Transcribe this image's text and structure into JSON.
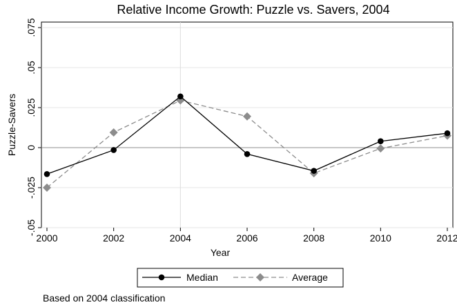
{
  "chart_data": {
    "type": "line",
    "title": "Relative Income Growth: Puzzle vs. Savers, 2004",
    "xlabel": "Year",
    "ylabel": "Puzzle-Savers",
    "note": "Based on 2004 classification",
    "x": [
      2000,
      2002,
      2004,
      2006,
      2008,
      2010,
      2012
    ],
    "xlim": [
      2000,
      2012
    ],
    "ylim": [
      -0.05,
      0.075
    ],
    "xticks": [
      "2000",
      "2002",
      "2004",
      "2006",
      "2008",
      "2010",
      "2012"
    ],
    "yticks": [
      {
        "value": -0.05,
        "label": "-.05"
      },
      {
        "value": -0.025,
        "label": "-.025"
      },
      {
        "value": 0,
        "label": "0"
      },
      {
        "value": 0.025,
        "label": ".025"
      },
      {
        "value": 0.05,
        "label": ".05"
      },
      {
        "value": 0.075,
        "label": ".075"
      }
    ],
    "reference_lines": {
      "x": 2004,
      "y": 0
    },
    "grid": "horizontal",
    "legend_position": "bottom",
    "series": [
      {
        "name": "Median",
        "color": "#000000",
        "marker": "circle",
        "line_style": "solid",
        "values": [
          -0.0165,
          -0.0015,
          0.032,
          -0.004,
          -0.0145,
          0.004,
          0.009
        ]
      },
      {
        "name": "Average",
        "color": "#8c8c8c",
        "marker": "diamond",
        "line_style": "dashed",
        "values": [
          -0.025,
          0.0095,
          0.0295,
          0.0195,
          -0.016,
          -0.0005,
          0.0075
        ]
      }
    ]
  }
}
